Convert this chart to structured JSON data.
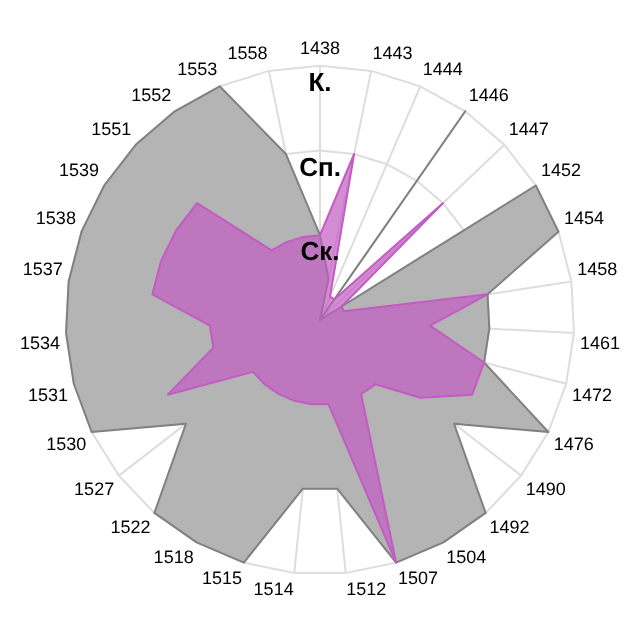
{
  "chart_data": {
    "type": "radar",
    "categories": [
      "1438",
      "1443",
      "1444",
      "1446",
      "1447",
      "1452",
      "1454",
      "1458",
      "1461",
      "1472",
      "1476",
      "1490",
      "1492",
      "1504",
      "1507",
      "1512",
      "1514",
      "1515",
      "1518",
      "1522",
      "1527",
      "1530",
      "1531",
      "1534",
      "1537",
      "1538",
      "1539",
      "1551",
      "1552",
      "1553",
      "1558"
    ],
    "series": [
      {
        "color": "#b4b4b4",
        "values": [
          1,
          0.5,
          0,
          3,
          0,
          3,
          3,
          2,
          2,
          2,
          3,
          2,
          3,
          3,
          3,
          2,
          2,
          3,
          3,
          3,
          2,
          3,
          3,
          3,
          3,
          3,
          3,
          3,
          3,
          3,
          2
        ]
      },
      {
        "color": "#c25cc2",
        "values": [
          1,
          2,
          0.3,
          0.3,
          2,
          0.3,
          0.3,
          2,
          1.3,
          2,
          2,
          1.5,
          1,
          1,
          3,
          1,
          1,
          1,
          1,
          1,
          1,
          2,
          1.3,
          1.3,
          2,
          2,
          2,
          2,
          1,
          1,
          1
        ]
      }
    ],
    "ylim": [
      0,
      3
    ],
    "yticks": [
      {
        "value": 1,
        "label": "Ск."
      },
      {
        "value": 2,
        "label": "Сп."
      },
      {
        "value": 3,
        "label": "К."
      }
    ],
    "grid": true,
    "legend": false,
    "marker": "none"
  }
}
